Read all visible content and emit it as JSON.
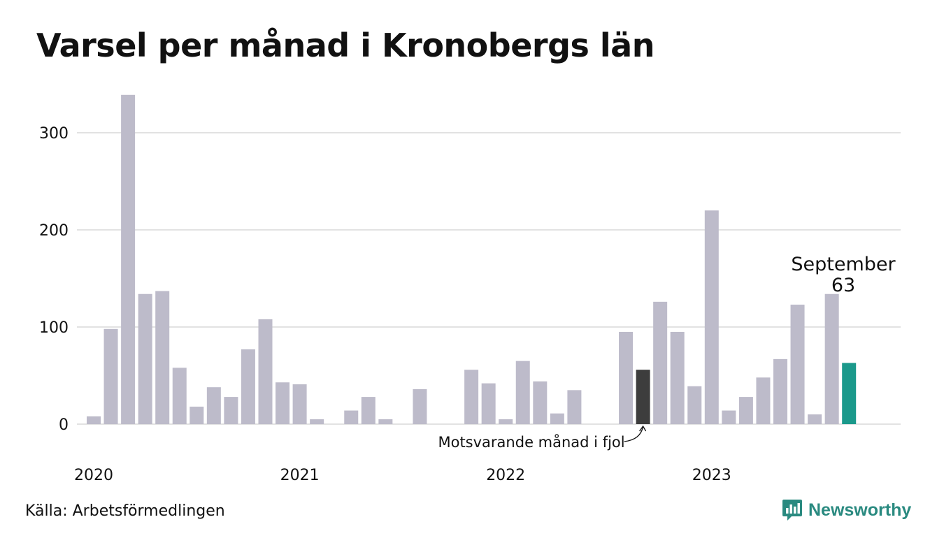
{
  "chart_data": {
    "type": "bar",
    "title": "Varsel per månad i Kronobergs län",
    "source": "Källa: Arbetsförmedlingen",
    "brand": "Newsworthy",
    "x_tick_labels": [
      "2020",
      "2021",
      "2022",
      "2023"
    ],
    "y_ticks": [
      0,
      100,
      200,
      300
    ],
    "ylim": [
      0,
      340
    ],
    "grid": true,
    "values": [
      8,
      98,
      339,
      134,
      137,
      58,
      18,
      38,
      28,
      77,
      108,
      43,
      41,
      5,
      0,
      14,
      28,
      5,
      0,
      36,
      0,
      0,
      56,
      42,
      5,
      65,
      44,
      11,
      35,
      0,
      0,
      95,
      56,
      126,
      95,
      39,
      220,
      14,
      28,
      48,
      67,
      123,
      10,
      134,
      63
    ],
    "highlight_index": 44,
    "comparison_index": 32,
    "annotation_current": {
      "month": "September",
      "value": "63"
    },
    "annotation_comparison": "Motsvarande månad i fjol",
    "colors": {
      "bar": "#bdbbca",
      "comparison": "#3d3d3d",
      "highlight": "#1b998b",
      "grid": "#e2e2e2",
      "brand": "#2a8a80"
    }
  }
}
